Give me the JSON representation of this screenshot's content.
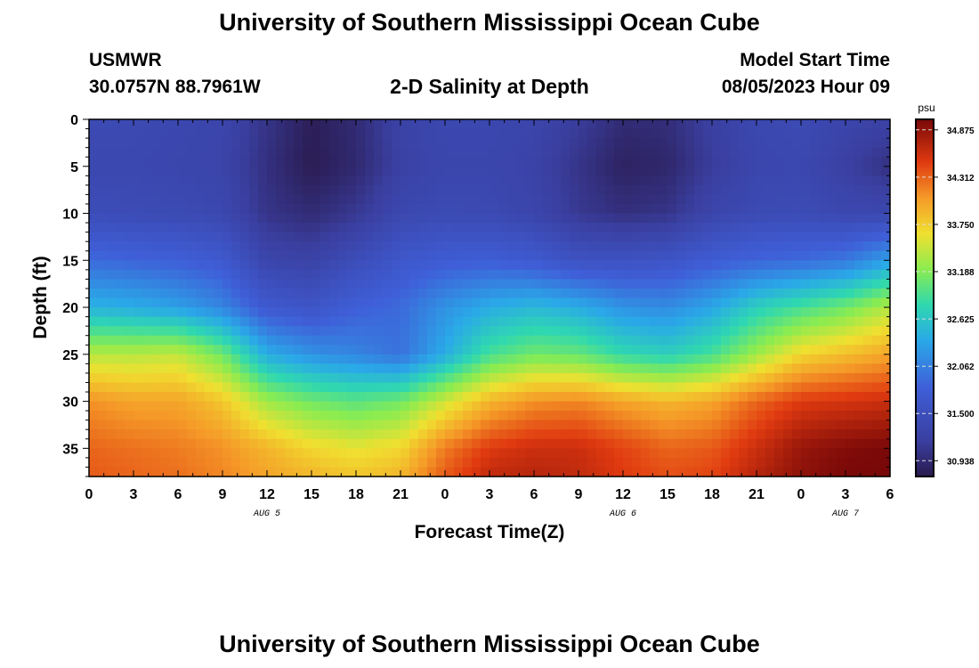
{
  "header": {
    "title": "University of Southern Mississippi Ocean Cube",
    "station": "USMWR",
    "coords": "30.0757N  88.7961W",
    "subtitle": "2-D Salinity at Depth",
    "model_label": "Model Start Time",
    "model_time": "08/05/2023 Hour 09"
  },
  "footer": {
    "title": "University of Southern Mississippi Ocean Cube"
  },
  "chart_data": {
    "type": "heatmap",
    "title": "2-D Salinity at Depth",
    "xlabel": "Forecast Time(Z)",
    "ylabel": "Depth (ft)",
    "x_tick_labels": [
      "0",
      "3",
      "6",
      "9",
      "12",
      "15",
      "18",
      "21",
      "0",
      "3",
      "6",
      "9",
      "12",
      "15",
      "18",
      "21",
      "0",
      "3",
      "6"
    ],
    "date_labels": [
      {
        "text": "AUG 5",
        "at_hour": 12
      },
      {
        "text": "AUG 6",
        "at_hour": 36
      },
      {
        "text": "AUG 7",
        "at_hour": 51
      }
    ],
    "x_range_hours": [
      0,
      54
    ],
    "y_ticks": [
      0,
      5,
      10,
      15,
      20,
      25,
      30,
      35
    ],
    "y_range": [
      0,
      38
    ],
    "y_inverted": true,
    "colorbar": {
      "unit": "psu",
      "ticks": [
        "34.875",
        "34.312",
        "33.750",
        "33.188",
        "32.625",
        "32.062",
        "31.500",
        "30.938"
      ],
      "range": [
        30.75,
        35.0
      ]
    },
    "colors": {
      "low": "#2a1a4e",
      "mid_low": "#3f5fd8",
      "mid": "#2fd8b0",
      "mid_high": "#f0e030",
      "high": "#e03a10",
      "max": "#780808"
    },
    "salinity_grid": {
      "hours": [
        0,
        3,
        6,
        9,
        12,
        15,
        18,
        21,
        24,
        27,
        30,
        33,
        36,
        39,
        42,
        45,
        48,
        51,
        54
      ],
      "depths": [
        0,
        5,
        10,
        15,
        20,
        25,
        30,
        35,
        38
      ],
      "values": [
        [
          31.4,
          31.38,
          31.35,
          31.3,
          31.05,
          30.8,
          30.95,
          31.25,
          31.35,
          31.35,
          31.3,
          31.15,
          30.95,
          30.98,
          31.2,
          31.35,
          31.4,
          31.3,
          31.25
        ],
        [
          31.35,
          31.35,
          31.32,
          31.28,
          31.0,
          30.78,
          30.92,
          31.22,
          31.32,
          31.32,
          31.25,
          31.05,
          30.85,
          30.9,
          31.15,
          31.32,
          31.35,
          31.2,
          31.0
        ],
        [
          31.45,
          31.42,
          31.4,
          31.35,
          31.05,
          30.95,
          31.1,
          31.35,
          31.4,
          31.38,
          31.3,
          31.1,
          31.0,
          31.05,
          31.3,
          31.4,
          31.42,
          31.35,
          31.35
        ],
        [
          31.9,
          31.85,
          31.8,
          31.7,
          31.3,
          31.25,
          31.45,
          31.65,
          31.75,
          31.78,
          31.7,
          31.55,
          31.55,
          31.6,
          31.75,
          31.85,
          31.9,
          32.0,
          32.3
        ],
        [
          32.45,
          32.4,
          32.3,
          32.1,
          31.7,
          31.6,
          31.8,
          31.9,
          32.2,
          32.4,
          32.5,
          32.4,
          32.2,
          32.15,
          32.35,
          32.7,
          32.9,
          33.1,
          33.4
        ],
        [
          33.4,
          33.4,
          33.45,
          33.1,
          32.4,
          32.2,
          32.1,
          31.95,
          32.4,
          32.9,
          33.1,
          33.05,
          32.8,
          32.7,
          32.9,
          33.3,
          33.7,
          33.85,
          34.0
        ],
        [
          34.1,
          34.0,
          34.0,
          33.8,
          33.3,
          33.1,
          33.0,
          33.1,
          33.5,
          33.9,
          34.1,
          34.15,
          34.0,
          33.9,
          34.0,
          34.3,
          34.5,
          34.55,
          34.6
        ],
        [
          34.3,
          34.25,
          34.2,
          34.1,
          33.9,
          33.7,
          33.6,
          33.7,
          34.2,
          34.5,
          34.6,
          34.6,
          34.45,
          34.3,
          34.35,
          34.6,
          34.85,
          34.95,
          35.0
        ],
        [
          34.35,
          34.3,
          34.25,
          34.15,
          34.0,
          33.9,
          33.8,
          33.9,
          34.35,
          34.65,
          34.7,
          34.65,
          34.5,
          34.4,
          34.45,
          34.7,
          34.9,
          35.0,
          35.0
        ]
      ]
    }
  }
}
